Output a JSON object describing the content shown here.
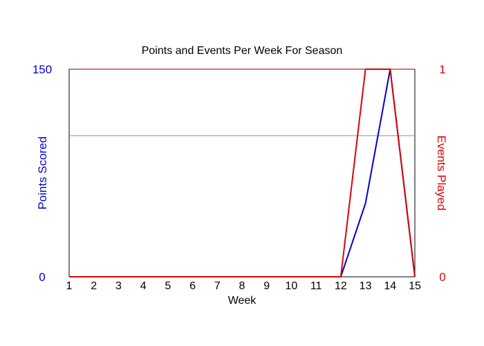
{
  "chart_data": {
    "type": "line",
    "title": "Points and Events Per Week For Season",
    "xlabel": "Week",
    "ylabel_left": "Points Scored",
    "ylabel_right": "Events Played",
    "x": [
      1,
      2,
      3,
      4,
      5,
      6,
      7,
      8,
      9,
      10,
      11,
      12,
      13,
      14,
      15
    ],
    "x_tick_labels": [
      "1",
      "2",
      "3",
      "4",
      "5",
      "6",
      "7",
      "8",
      "9",
      "10",
      "11",
      "12",
      "13",
      "14",
      "15"
    ],
    "ylim_left": [
      0,
      150
    ],
    "ylim_right": [
      0,
      1
    ],
    "left_tick_labels": [
      "0",
      "150"
    ],
    "right_tick_labels": [
      "0",
      "1"
    ],
    "gridline_left_value": 102,
    "series": [
      {
        "axis": "left",
        "color": "#0000cc",
        "values": [
          0,
          0,
          0,
          0,
          0,
          0,
          0,
          0,
          0,
          0,
          0,
          0,
          53,
          150,
          0
        ]
      },
      {
        "axis": "right",
        "color": "#dd0000",
        "values": [
          0,
          0,
          0,
          0,
          0,
          0,
          0,
          0,
          0,
          0,
          0,
          0,
          1,
          1,
          0
        ]
      }
    ],
    "colors": {
      "left_axis": "#0000cc",
      "right_axis": "#dd0000",
      "frame": "#000000",
      "frame_top": "#800000",
      "gridline": "#8888bb"
    }
  }
}
